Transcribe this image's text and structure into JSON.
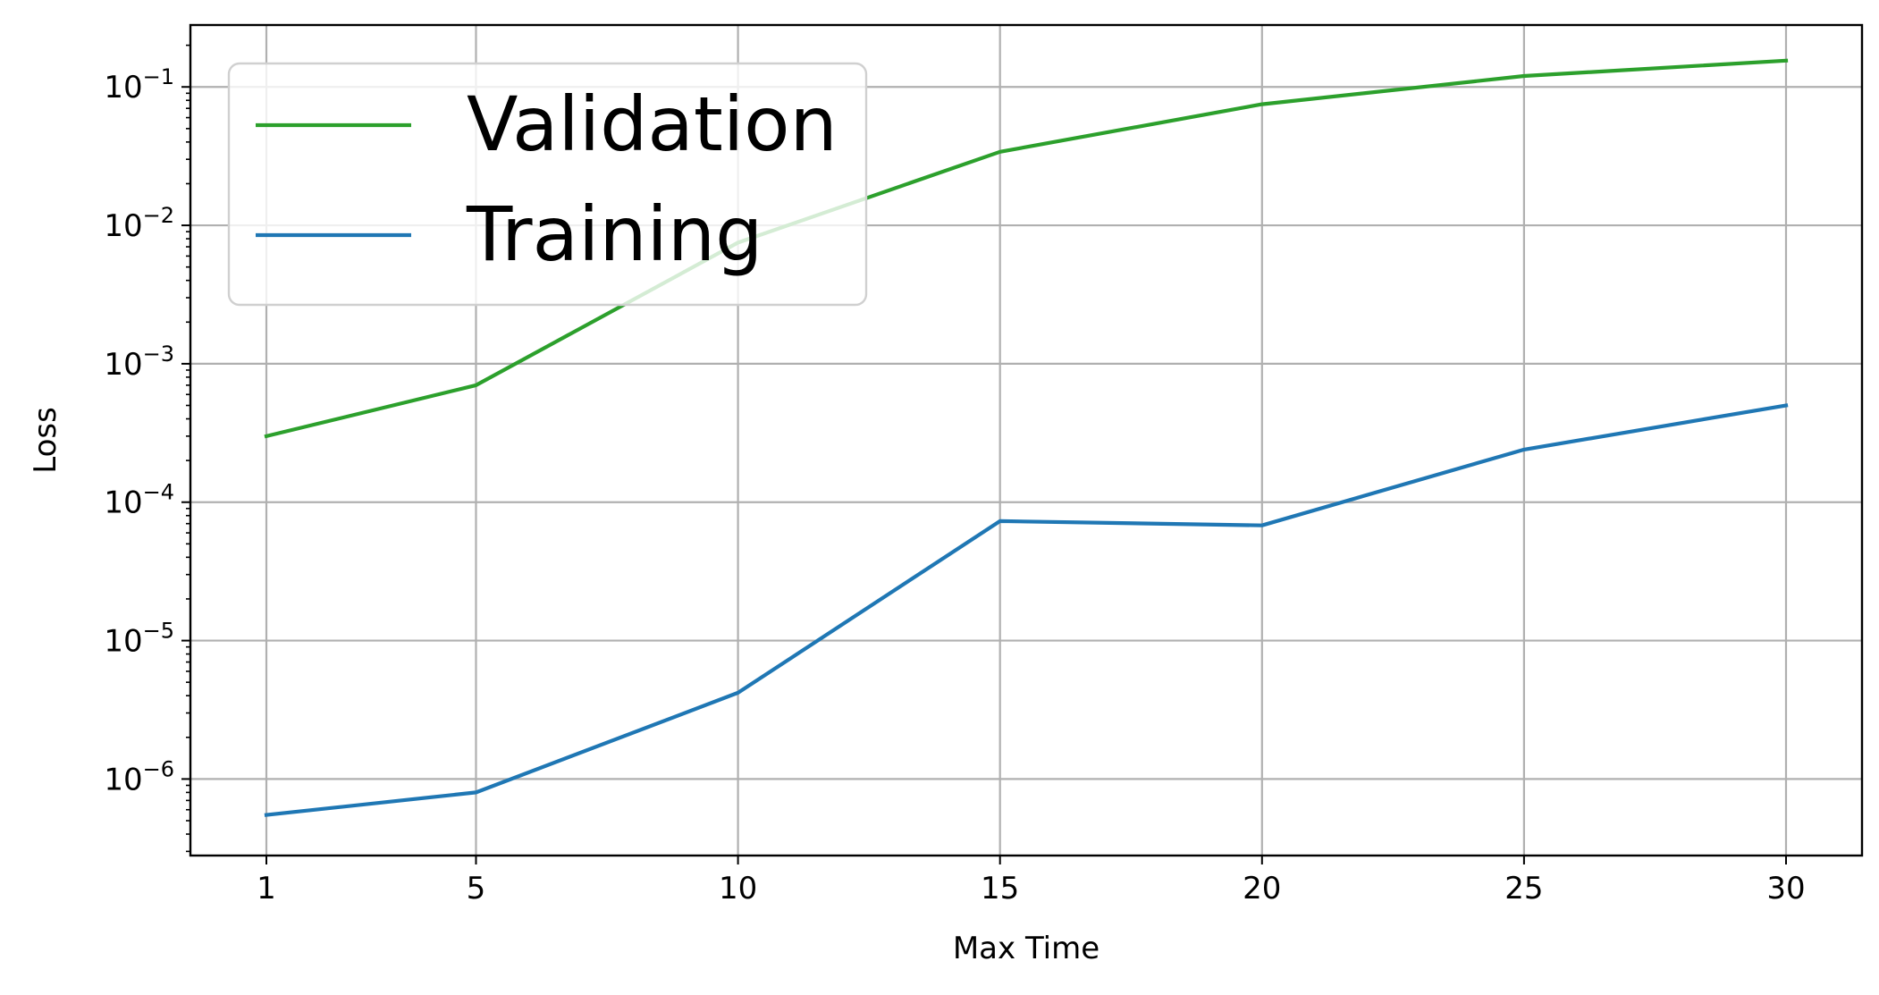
{
  "chart_data": {
    "type": "line",
    "title": "",
    "xlabel": "Max Time",
    "ylabel": "Loss",
    "x": [
      1,
      5,
      10,
      15,
      20,
      25,
      30
    ],
    "xticks": [
      "1",
      "5",
      "10",
      "15",
      "20",
      "25",
      "30"
    ],
    "xlim": [
      -0.45,
      31.45
    ],
    "yscale": "log",
    "ylim": [
      2.8e-07,
      0.28
    ],
    "yticks": [
      {
        "value": 1e-06,
        "base": "10",
        "exp": "−6"
      },
      {
        "value": 1e-05,
        "base": "10",
        "exp": "−5"
      },
      {
        "value": 0.0001,
        "base": "10",
        "exp": "−4"
      },
      {
        "value": 0.001,
        "base": "10",
        "exp": "−3"
      },
      {
        "value": 0.01,
        "base": "10",
        "exp": "−2"
      },
      {
        "value": 0.1,
        "base": "10",
        "exp": "−1"
      }
    ],
    "grid": true,
    "legend_position": "top-left",
    "series": [
      {
        "name": "Validation",
        "color": "#2ca02c",
        "values": [
          0.0003,
          0.0007,
          0.0075,
          0.034,
          0.075,
          0.12,
          0.155
        ]
      },
      {
        "name": "Training",
        "color": "#1f77b4",
        "values": [
          5.5e-07,
          8e-07,
          4.2e-06,
          7.3e-05,
          6.8e-05,
          0.00024,
          0.0005
        ]
      }
    ]
  }
}
